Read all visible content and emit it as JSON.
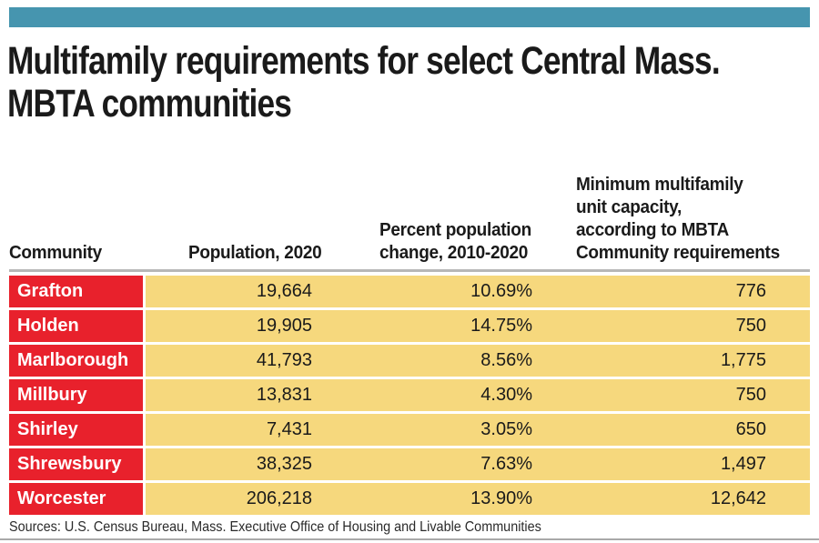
{
  "colors": {
    "accent_teal": "#4695af",
    "community_red": "#e8212c",
    "data_yellow": "#f6d87d"
  },
  "title_lines": [
    "Multifamily requirements for select Central Mass.",
    "MBTA communities"
  ],
  "table": {
    "columns": [
      {
        "label": "Community"
      },
      {
        "label": "Population, 2020"
      },
      {
        "label": "Percent population\nchange, 2010-2020"
      },
      {
        "label": "Minimum multifamily\nunit capacity,\naccording to MBTA\nCommunity requirements"
      }
    ],
    "rows": [
      {
        "community": "Grafton",
        "population": "19,664",
        "pct_change": "10.69%",
        "min_capacity": "776"
      },
      {
        "community": "Holden",
        "population": "19,905",
        "pct_change": "14.75%",
        "min_capacity": "750"
      },
      {
        "community": "Marlborough",
        "population": "41,793",
        "pct_change": "8.56%",
        "min_capacity": "1,775"
      },
      {
        "community": "Millbury",
        "population": "13,831",
        "pct_change": "4.30%",
        "min_capacity": "750"
      },
      {
        "community": "Shirley",
        "population": "7,431",
        "pct_change": "3.05%",
        "min_capacity": "650"
      },
      {
        "community": "Shrewsbury",
        "population": "38,325",
        "pct_change": "7.63%",
        "min_capacity": "1,497"
      },
      {
        "community": "Worcester",
        "population": "206,218",
        "pct_change": "13.90%",
        "min_capacity": "12,642"
      }
    ]
  },
  "source_note": "Sources: U.S. Census Bureau, Mass. Executive Office of Housing and Livable Communities",
  "chart_data": {
    "type": "table",
    "title": "Multifamily requirements for select Central Mass. MBTA communities",
    "columns": [
      "Community",
      "Population, 2020",
      "Percent population change, 2010-2020",
      "Minimum multifamily unit capacity, according to MBTA Community requirements"
    ],
    "rows": [
      [
        "Grafton",
        19664,
        10.69,
        776
      ],
      [
        "Holden",
        19905,
        14.75,
        750
      ],
      [
        "Marlborough",
        41793,
        8.56,
        1775
      ],
      [
        "Millbury",
        13831,
        4.3,
        750
      ],
      [
        "Shirley",
        7431,
        3.05,
        650
      ],
      [
        "Shrewsbury",
        38325,
        7.63,
        1497
      ],
      [
        "Worcester",
        206218,
        13.9,
        12642
      ]
    ],
    "source": "Sources: U.S. Census Bureau, Mass. Executive Office of Housing and Livable Communities",
    "layout_hints": {
      "community_cells": "red background, white bold text",
      "data_cells": "yellow background, right-aligned numerals",
      "header_alignment": "left, bottom-aligned multi-line"
    }
  }
}
